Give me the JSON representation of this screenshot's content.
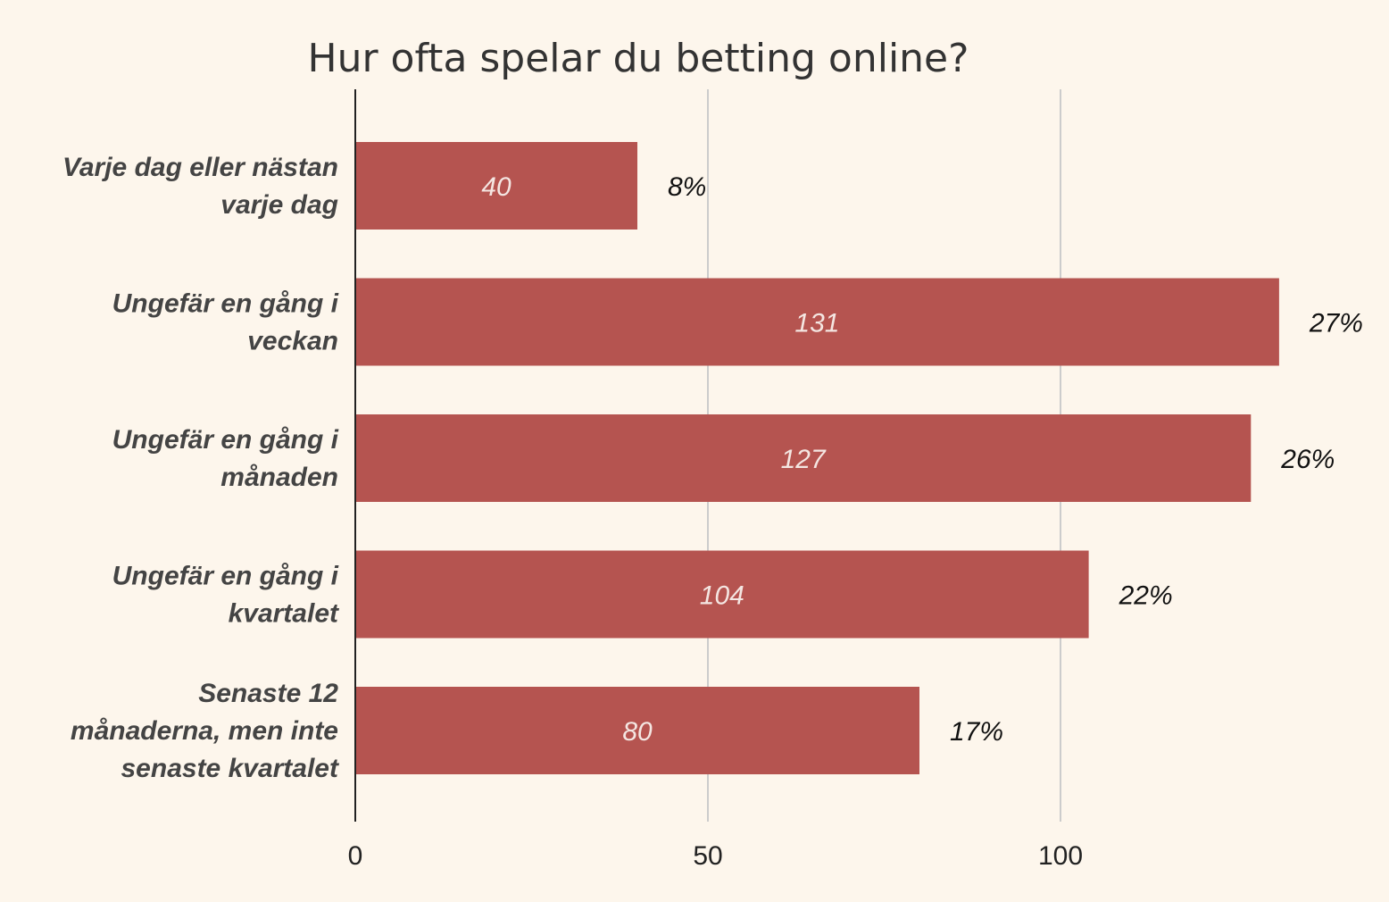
{
  "chart_data": {
    "type": "bar",
    "orientation": "horizontal",
    "title": "Hur ofta spelar du betting online?",
    "categories": [
      [
        "Varje dag eller nästan",
        "varje dag"
      ],
      [
        "Ungefär en gång i",
        "veckan"
      ],
      [
        "Ungefär en gång i",
        "månaden"
      ],
      [
        "Ungefär en gång i",
        "kvartalet"
      ],
      [
        "Senaste 12",
        "månaderna, men inte",
        "senaste kvartalet"
      ]
    ],
    "values": [
      40,
      131,
      127,
      104,
      80
    ],
    "value_labels": [
      "40",
      "131",
      "127",
      "104",
      "80"
    ],
    "percent_labels": [
      "8%",
      "27%",
      "26%",
      "22%",
      "17%"
    ],
    "xlim": [
      0,
      141
    ],
    "xticks": [
      0,
      50,
      100
    ],
    "xtick_labels": [
      "0",
      "50",
      "100"
    ],
    "grid": true,
    "legend": "none",
    "bar_color": "#b55450"
  }
}
